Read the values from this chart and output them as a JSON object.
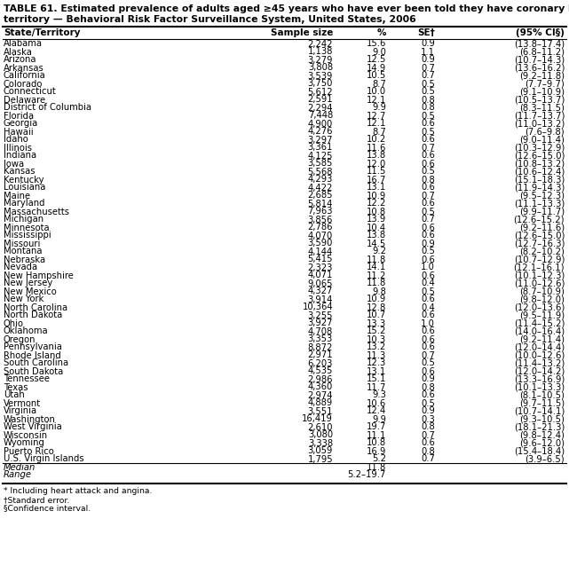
{
  "title_line1": "TABLE 61. Estimated prevalence of adults aged ≥45 years who have ever been told they have coronary heart disease,* by state/",
  "title_line2": "territory — Behavioral Risk Factor Surveillance System, United States, 2006",
  "col_headers": [
    "State/Territory",
    "Sample size",
    "%",
    "SE†",
    "(95% CI§)"
  ],
  "rows": [
    [
      "Alabama",
      "2,242",
      "15.6",
      "0.9",
      "(13.8–17.4)"
    ],
    [
      "Alaska",
      "1,138",
      "9.0",
      "1.1",
      "(6.8–11.2)"
    ],
    [
      "Arizona",
      "3,279",
      "12.5",
      "0.9",
      "(10.7–14.3)"
    ],
    [
      "Arkansas",
      "3,808",
      "14.9",
      "0.7",
      "(13.6–16.2)"
    ],
    [
      "California",
      "3,539",
      "10.5",
      "0.7",
      "(9.2–11.8)"
    ],
    [
      "Colorado",
      "3,750",
      "8.7",
      "0.5",
      "(7.7–9.7)"
    ],
    [
      "Connecticut",
      "5,612",
      "10.0",
      "0.5",
      "(9.1–10.9)"
    ],
    [
      "Delaware",
      "2,591",
      "12.1",
      "0.8",
      "(10.5–13.7)"
    ],
    [
      "District of Columbia",
      "2,294",
      "9.9",
      "0.8",
      "(8.3–11.5)"
    ],
    [
      "Florida",
      "7,448",
      "12.7",
      "0.5",
      "(11.7–13.7)"
    ],
    [
      "Georgia",
      "4,900",
      "12.1",
      "0.6",
      "(11.0–13.2)"
    ],
    [
      "Hawaii",
      "4,276",
      "8.7",
      "0.5",
      "(7.6–9.8)"
    ],
    [
      "Idaho",
      "3,297",
      "10.2",
      "0.6",
      "(9.0–11.4)"
    ],
    [
      "Illinois",
      "3,361",
      "11.6",
      "0.7",
      "(10.3–12.9)"
    ],
    [
      "Indiana",
      "4,125",
      "13.8",
      "0.6",
      "(12.6–15.0)"
    ],
    [
      "Iowa",
      "3,585",
      "12.0",
      "0.6",
      "(10.8–13.2)"
    ],
    [
      "Kansas",
      "5,568",
      "11.5",
      "0.5",
      "(10.6–12.4)"
    ],
    [
      "Kentucky",
      "4,293",
      "16.7",
      "0.8",
      "(15.1–18.3)"
    ],
    [
      "Louisiana",
      "4,422",
      "13.1",
      "0.6",
      "(11.9–14.3)"
    ],
    [
      "Maine",
      "2,685",
      "10.9",
      "0.7",
      "(9.5–12.3)"
    ],
    [
      "Maryland",
      "5,814",
      "12.2",
      "0.6",
      "(11.1–13.3)"
    ],
    [
      "Massachusetts",
      "7,963",
      "10.8",
      "0.5",
      "(9.9–11.7)"
    ],
    [
      "Michigan",
      "3,856",
      "13.9",
      "0.7",
      "(12.6–15.2)"
    ],
    [
      "Minnesota",
      "2,786",
      "10.4",
      "0.6",
      "(9.2–11.6)"
    ],
    [
      "Mississippi",
      "4,070",
      "13.8",
      "0.6",
      "(12.6–15.0)"
    ],
    [
      "Missouri",
      "3,590",
      "14.5",
      "0.9",
      "(12.7–16.3)"
    ],
    [
      "Montana",
      "4,144",
      "9.2",
      "0.5",
      "(8.2–10.2)"
    ],
    [
      "Nebraska",
      "5,415",
      "11.8",
      "0.6",
      "(10.7–12.9)"
    ],
    [
      "Nevada",
      "2,323",
      "14.1",
      "1.0",
      "(12.1–16.1)"
    ],
    [
      "New Hampshire",
      "4,071",
      "11.2",
      "0.6",
      "(10.1–12.3)"
    ],
    [
      "New Jersey",
      "9,065",
      "11.8",
      "0.4",
      "(11.0–12.6)"
    ],
    [
      "New Mexico",
      "4,327",
      "9.8",
      "0.5",
      "(8.7–10.9)"
    ],
    [
      "New York",
      "3,914",
      "10.9",
      "0.6",
      "(9.8–12.0)"
    ],
    [
      "North Carolina",
      "10,364",
      "12.8",
      "0.4",
      "(12.0–13.6)"
    ],
    [
      "North Dakota",
      "3,255",
      "10.7",
      "0.6",
      "(9.5–11.9)"
    ],
    [
      "Ohio",
      "3,927",
      "13.3",
      "1.0",
      "(11.4–15.2)"
    ],
    [
      "Oklahoma",
      "4,708",
      "15.2",
      "0.6",
      "(14.0–16.4)"
    ],
    [
      "Oregon",
      "3,353",
      "10.3",
      "0.6",
      "(9.2–11.4)"
    ],
    [
      "Pennsylvania",
      "8,872",
      "13.2",
      "0.6",
      "(12.0–14.4)"
    ],
    [
      "Rhode Island",
      "2,971",
      "11.3",
      "0.7",
      "(10.0–12.6)"
    ],
    [
      "South Carolina",
      "6,203",
      "12.3",
      "0.5",
      "(11.4–13.2)"
    ],
    [
      "South Dakota",
      "4,535",
      "13.1",
      "0.6",
      "(12.0–14.2)"
    ],
    [
      "Tennessee",
      "2,986",
      "15.1",
      "0.9",
      "(13.3–16.9)"
    ],
    [
      "Texas",
      "4,360",
      "11.7",
      "0.8",
      "(10.1–13.3)"
    ],
    [
      "Utah",
      "2,974",
      "9.3",
      "0.6",
      "(8.1–10.5)"
    ],
    [
      "Vermont",
      "4,889",
      "10.6",
      "0.5",
      "(9.7–11.5)"
    ],
    [
      "Virginia",
      "3,551",
      "12.4",
      "0.9",
      "(10.7–14.1)"
    ],
    [
      "Washington",
      "16,419",
      "9.9",
      "0.3",
      "(9.3–10.5)"
    ],
    [
      "West Virginia",
      "2,610",
      "19.7",
      "0.8",
      "(18.1–21.3)"
    ],
    [
      "Wisconsin",
      "3,080",
      "11.1",
      "0.7",
      "(9.8–12.4)"
    ],
    [
      "Wyoming",
      "3,338",
      "10.8",
      "0.6",
      "(9.6–12.0)"
    ],
    [
      "Puerto Rico",
      "3,059",
      "16.9",
      "0.8",
      "(15.4–18.4)"
    ],
    [
      "U.S. Virgin Islands",
      "1,795",
      "5.2",
      "0.7",
      "(3.9–6.5)"
    ]
  ],
  "median_label": "Median",
  "median_value": "11.8",
  "range_label": "Range",
  "range_value": "5.2–19.7",
  "footnotes": [
    "* Including heart attack and angina.",
    "†Standard error.",
    "§Confidence interval."
  ],
  "font_size": 7.2,
  "title_font_size": 7.8,
  "header_font_size": 7.5
}
